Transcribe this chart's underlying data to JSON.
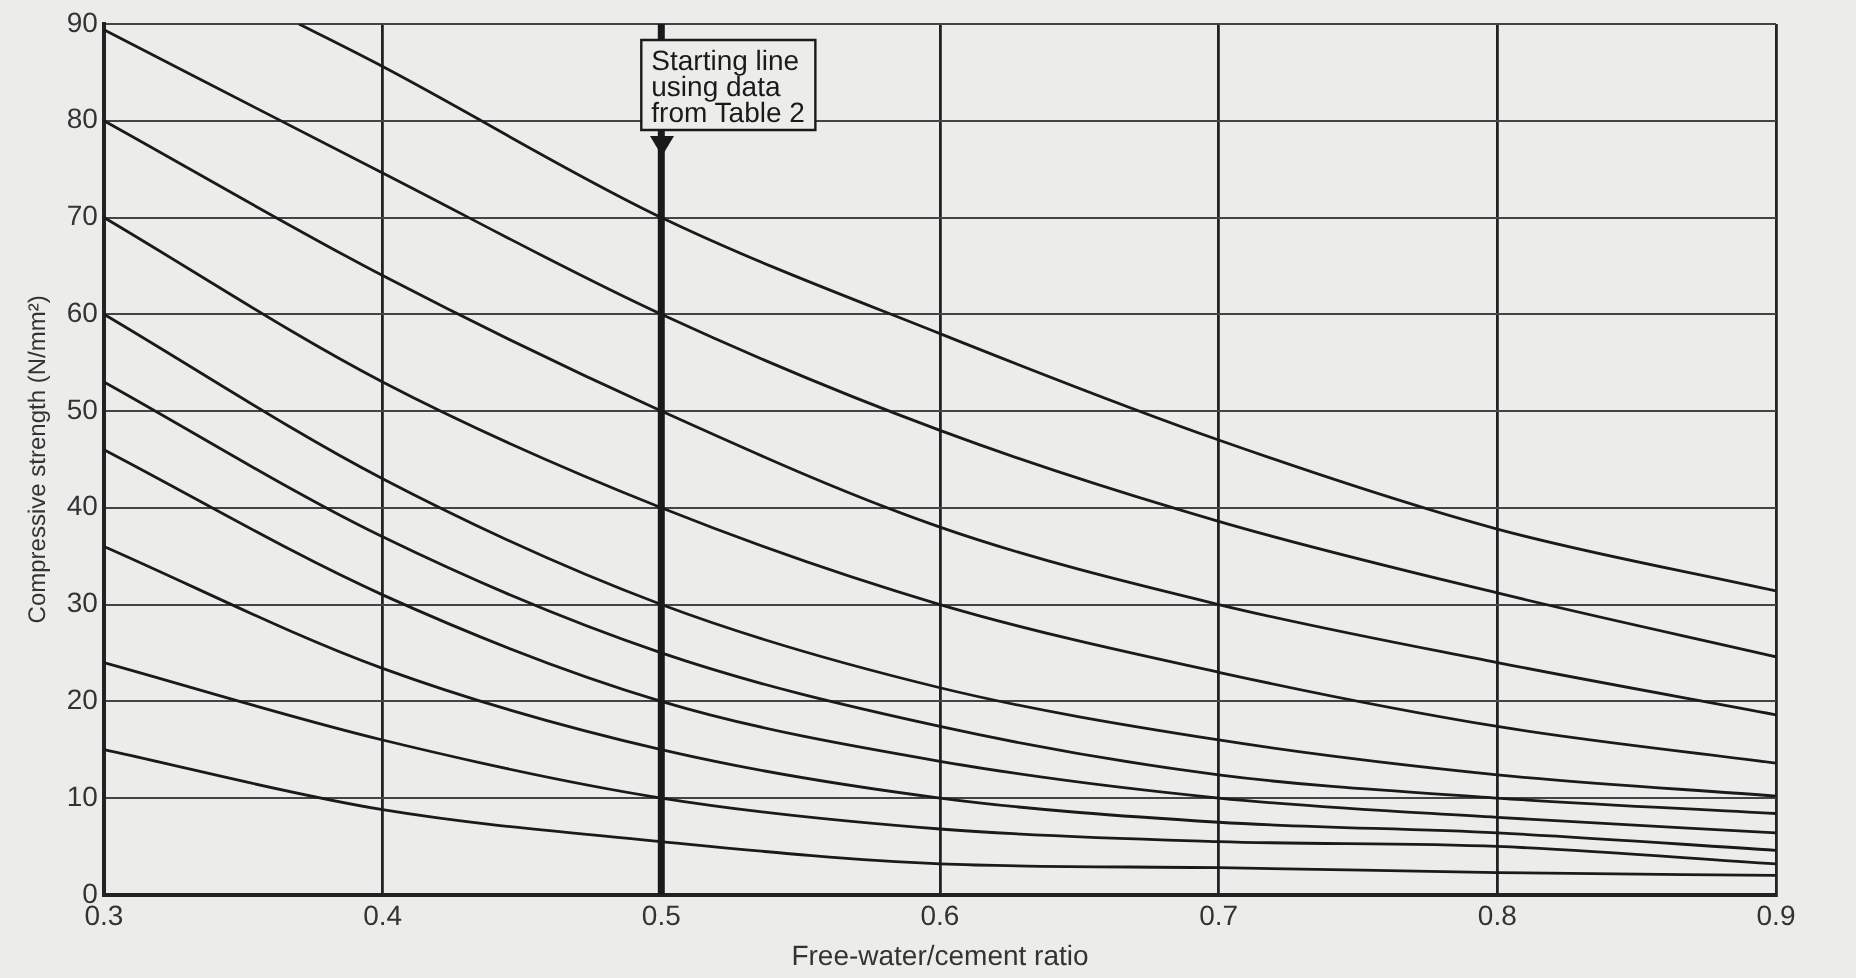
{
  "chart_data": {
    "type": "line",
    "xlabel": "Free-water/cement ratio",
    "ylabel": "Compressive strength (N/mm²)",
    "x": [
      0.3,
      0.4,
      0.5,
      0.6,
      0.7,
      0.8,
      0.9
    ],
    "series": [
      {
        "color": "#1a1a1a",
        "values": [
          15,
          8.8,
          5.5,
          3.2,
          2.8,
          2.3,
          2
        ]
      },
      {
        "color": "#1a1a1a",
        "values": [
          24,
          16,
          10,
          6.8,
          5.5,
          5,
          3.2
        ]
      },
      {
        "color": "#1a1a1a",
        "values": [
          36,
          23.4,
          15,
          10,
          7.5,
          6.4,
          4.6
        ]
      },
      {
        "color": "#1a1a1a",
        "values": [
          46,
          31,
          20,
          13.8,
          10,
          8,
          6.4
        ]
      },
      {
        "color": "#1a1a1a",
        "values": [
          53,
          37,
          25,
          17.4,
          12.4,
          10,
          8.4
        ]
      },
      {
        "color": "#1a1a1a",
        "values": [
          60,
          43,
          30,
          21.4,
          16,
          12.4,
          10.2
        ]
      },
      {
        "color": "#1a1a1a",
        "values": [
          70,
          53,
          40,
          30,
          23,
          17.4,
          13.6
        ]
      },
      {
        "color": "#1a1a1a",
        "values": [
          80,
          64,
          50,
          38,
          30,
          24,
          18.6
        ]
      },
      {
        "color": "#1a1a1a",
        "values": [
          89.4,
          74.6,
          60,
          48,
          38.6,
          31.2,
          24.6
        ]
      },
      {
        "color": "#1a1a1a",
        "x": [
          0.37,
          0.4,
          0.5,
          0.6,
          0.7,
          0.8,
          0.9
        ],
        "values": [
          90,
          85.6,
          70,
          58,
          47,
          37.8,
          31.4
        ]
      }
    ],
    "xlim": [
      0.3,
      0.9
    ],
    "xticks": [
      0.3,
      0.4,
      0.5,
      0.6,
      0.7,
      0.8,
      0.9
    ],
    "ylim": [
      0,
      90
    ],
    "yticks": [
      0,
      10,
      20,
      30,
      40,
      50,
      60,
      70,
      80,
      90
    ],
    "grid": true,
    "legend": false,
    "marker": "none",
    "line_style": "solid",
    "ref_lines": [
      {
        "axis": "x",
        "value": 0.5,
        "label": "Starting line\nusing data\nfrom Table 2",
        "color": "#1a1a1a"
      }
    ]
  }
}
